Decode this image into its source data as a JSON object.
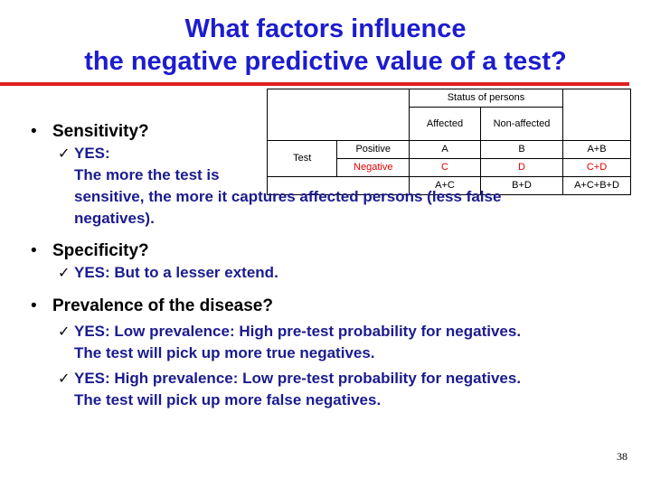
{
  "title": {
    "line1": "What factors influence",
    "line2": "the negative predictive value of a test?"
  },
  "table": {
    "header_status": "Status of persons",
    "header_affected": "Affected",
    "header_nonaffected": "Non-affected",
    "row_test_label": "Test",
    "row_positive": {
      "label": "Positive",
      "a": "A",
      "b": "B",
      "sum": "A+B"
    },
    "row_negative": {
      "label": "Negative",
      "c": "C",
      "d": "D",
      "sum": "C+D"
    },
    "totals": {
      "col1": "A+C",
      "col2": "B+D",
      "all": "A+C+B+D"
    }
  },
  "bullets": {
    "b1": "Sensitivity?",
    "b1_sub1_l1": "YES:",
    "b1_sub1_l2": "The more the test is",
    "b1_sub1_l3": "sensitive, the more it captures affected persons (less false",
    "b1_sub1_l4": "negatives).",
    "b2": "Specificity?",
    "b2_sub1": "YES: But to a lesser extend.",
    "b3": "Prevalence of the disease?",
    "b3_sub1_l1": "YES: Low prevalence: High pre-test probability for negatives.",
    "b3_sub1_l2": "The test will pick up more true negatives.",
    "b3_sub2_l1": "YES: High prevalence: Low pre-test probability for negatives.",
    "b3_sub2_l2": "The test will pick up more false negatives."
  },
  "page_number": "38",
  "colors": {
    "title": "#1c1ccf",
    "rule": "#e02020",
    "sub_text": "#1b1b8f",
    "negative": "#e00000"
  }
}
